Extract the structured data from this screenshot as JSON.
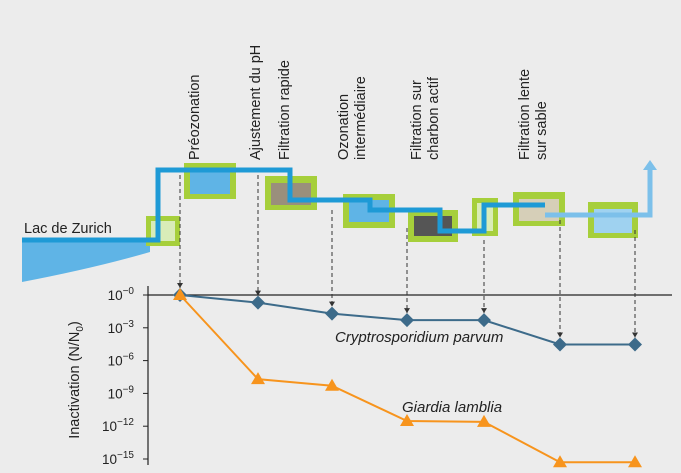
{
  "diagram": {
    "source_label": "Lac de Zurich",
    "stages": [
      {
        "lines": [
          "Préozonation"
        ]
      },
      {
        "lines": [
          "Ajustement du pH"
        ]
      },
      {
        "lines": [
          "Filtration rapide"
        ]
      },
      {
        "lines": [
          "Ozonation",
          "intermédiaire"
        ]
      },
      {
        "lines": [
          "Filtration sur",
          "charbon actif"
        ]
      },
      {
        "lines": [
          ""
        ]
      },
      {
        "lines": [
          "Filtration lente",
          "sur sable"
        ]
      },
      {
        "lines": [
          ""
        ]
      }
    ]
  },
  "chart_data": {
    "type": "line",
    "ylabel": "Inactivation (N/N0)",
    "yscale": "log",
    "ylim": [
      1e-16,
      1
    ],
    "y_ticks": [
      {
        "base": "10",
        "exp": "−0"
      },
      {
        "base": "10",
        "exp": "−3"
      },
      {
        "base": "10",
        "exp": "−6"
      },
      {
        "base": "10",
        "exp": "−9"
      },
      {
        "base": "10",
        "exp": "−12"
      },
      {
        "base": "10",
        "exp": "−15"
      }
    ],
    "y_tick_values": [
      1,
      0.001,
      1e-06,
      1e-09,
      1e-12,
      1e-15
    ],
    "x_positions": [
      1,
      2,
      3,
      4,
      5,
      6,
      7
    ],
    "series": [
      {
        "name": "Cryptrosporidium parvum",
        "marker": "diamond",
        "color": "#3d6b8a",
        "x": [
          1,
          2,
          3,
          4,
          5,
          6,
          7
        ],
        "values": [
          1,
          0.2,
          0.02,
          0.005,
          0.005,
          3e-05,
          3e-05
        ]
      },
      {
        "name": "Giardia lamblia",
        "marker": "triangle",
        "color": "#f7941d",
        "x": [
          1,
          2,
          3,
          4,
          5,
          6,
          7
        ],
        "values": [
          1,
          2e-08,
          5e-09,
          3e-12,
          2.5e-12,
          5e-16,
          5e-16
        ]
      }
    ],
    "grid": false
  }
}
